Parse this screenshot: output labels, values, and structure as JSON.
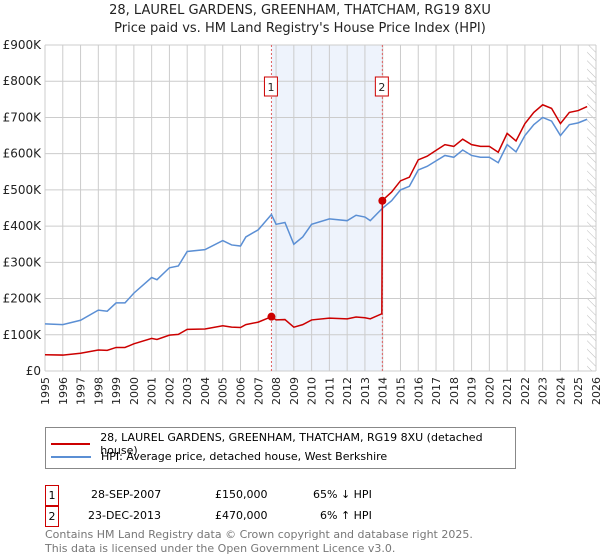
{
  "chart_data": {
    "type": "line",
    "title": "28, LAUREL GARDENS, GREENHAM, THATCHAM, RG19 8XU",
    "subtitle": "Price paid vs. HM Land Registry's House Price Index (HPI)",
    "xlim": [
      1995,
      2026
    ],
    "ylim": [
      0,
      900000
    ],
    "y_ticks": [
      {
        "v": 0,
        "l": "£0"
      },
      {
        "v": 100000,
        "l": "£100K"
      },
      {
        "v": 200000,
        "l": "£200K"
      },
      {
        "v": 300000,
        "l": "£300K"
      },
      {
        "v": 400000,
        "l": "£400K"
      },
      {
        "v": 500000,
        "l": "£500K"
      },
      {
        "v": 600000,
        "l": "£600K"
      },
      {
        "v": 700000,
        "l": "£700K"
      },
      {
        "v": 800000,
        "l": "£800K"
      },
      {
        "v": 900000,
        "l": "£900K"
      }
    ],
    "x_ticks": [
      "1995",
      "1996",
      "1997",
      "1998",
      "1999",
      "2000",
      "2001",
      "2002",
      "2003",
      "2004",
      "2005",
      "2006",
      "2007",
      "2008",
      "2009",
      "2010",
      "2011",
      "2012",
      "2013",
      "2014",
      "2015",
      "2016",
      "2017",
      "2018",
      "2019",
      "2020",
      "2021",
      "2022",
      "2023",
      "2024",
      "2025",
      "2026"
    ],
    "grid": true,
    "shaded_range": [
      2007.74,
      2013.98
    ],
    "hatched_from": 2025.5,
    "series": [
      {
        "name": "28, LAUREL GARDENS, GREENHAM, THATCHAM, RG19 8XU (detached house)",
        "color": "#cc0000",
        "x": [
          1995,
          1996,
          1997,
          1998,
          1998.5,
          1999,
          1999.5,
          2000,
          2001,
          2001.3,
          2002,
          2002.5,
          2003,
          2004,
          2005,
          2005.5,
          2006,
          2006.3,
          2007,
          2007.74,
          2008,
          2008.5,
          2009,
          2009.5,
          2010,
          2011,
          2012,
          2012.5,
          2013,
          2013.3,
          2013.95,
          2013.98,
          2014,
          2014.5,
          2015,
          2015.5,
          2016,
          2016.5,
          2017,
          2017.5,
          2018,
          2018.5,
          2019,
          2019.5,
          2020,
          2020.5,
          2021,
          2021.5,
          2022,
          2022.5,
          2023,
          2023.5,
          2024,
          2024.5,
          2025,
          2025.5
        ],
        "y": [
          45000,
          44000,
          49000,
          58000,
          57000,
          65000,
          65000,
          75000,
          90000,
          87000,
          99000,
          101000,
          115000,
          116000,
          125000,
          121000,
          120000,
          128000,
          135000,
          150000,
          141000,
          142000,
          121000,
          128000,
          141000,
          146000,
          144000,
          149000,
          147000,
          144000,
          158000,
          470000,
          472000,
          494000,
          525000,
          535000,
          583000,
          593000,
          609000,
          625000,
          620000,
          640000,
          625000,
          620000,
          620000,
          604000,
          656000,
          635000,
          683000,
          714000,
          735000,
          725000,
          683000,
          714000,
          719000,
          730000
        ]
      },
      {
        "name": "HPI: Average price, detached house, West Berkshire",
        "color": "#5b8fd4",
        "x": [
          1995,
          1996,
          1997,
          1998,
          1998.5,
          1999,
          1999.5,
          2000,
          2001,
          2001.3,
          2002,
          2002.5,
          2003,
          2004,
          2005,
          2005.5,
          2006,
          2006.3,
          2007,
          2007.74,
          2008,
          2008.5,
          2009,
          2009.5,
          2010,
          2011,
          2012,
          2012.5,
          2013,
          2013.3,
          2014,
          2014.5,
          2015,
          2015.5,
          2016,
          2016.5,
          2017,
          2017.5,
          2018,
          2018.5,
          2019,
          2019.5,
          2020,
          2020.5,
          2021,
          2021.5,
          2022,
          2022.5,
          2023,
          2023.5,
          2024,
          2024.5,
          2025,
          2025.5
        ],
        "y": [
          130000,
          128000,
          140000,
          168000,
          165000,
          188000,
          188000,
          215000,
          258000,
          252000,
          285000,
          290000,
          330000,
          335000,
          360000,
          348000,
          345000,
          370000,
          390000,
          432000,
          405000,
          410000,
          350000,
          370000,
          405000,
          420000,
          415000,
          430000,
          425000,
          415000,
          450000,
          470000,
          500000,
          510000,
          555000,
          565000,
          580000,
          595000,
          590000,
          610000,
          595000,
          590000,
          590000,
          575000,
          625000,
          605000,
          650000,
          680000,
          700000,
          690000,
          650000,
          680000,
          685000,
          695000
        ]
      }
    ],
    "sales": [
      {
        "n": "1",
        "x": 2007.74,
        "y": 150000,
        "date": "28-SEP-2007",
        "price": "£150,000",
        "hpi": "65% ↓ HPI"
      },
      {
        "n": "2",
        "x": 2013.98,
        "y": 470000,
        "date": "23-DEC-2013",
        "price": "£470,000",
        "hpi": "6% ↑ HPI"
      }
    ]
  },
  "footer": {
    "line1": "Contains HM Land Registry data © Crown copyright and database right 2025.",
    "line2": "This data is licensed under the Open Government Licence v3.0."
  }
}
